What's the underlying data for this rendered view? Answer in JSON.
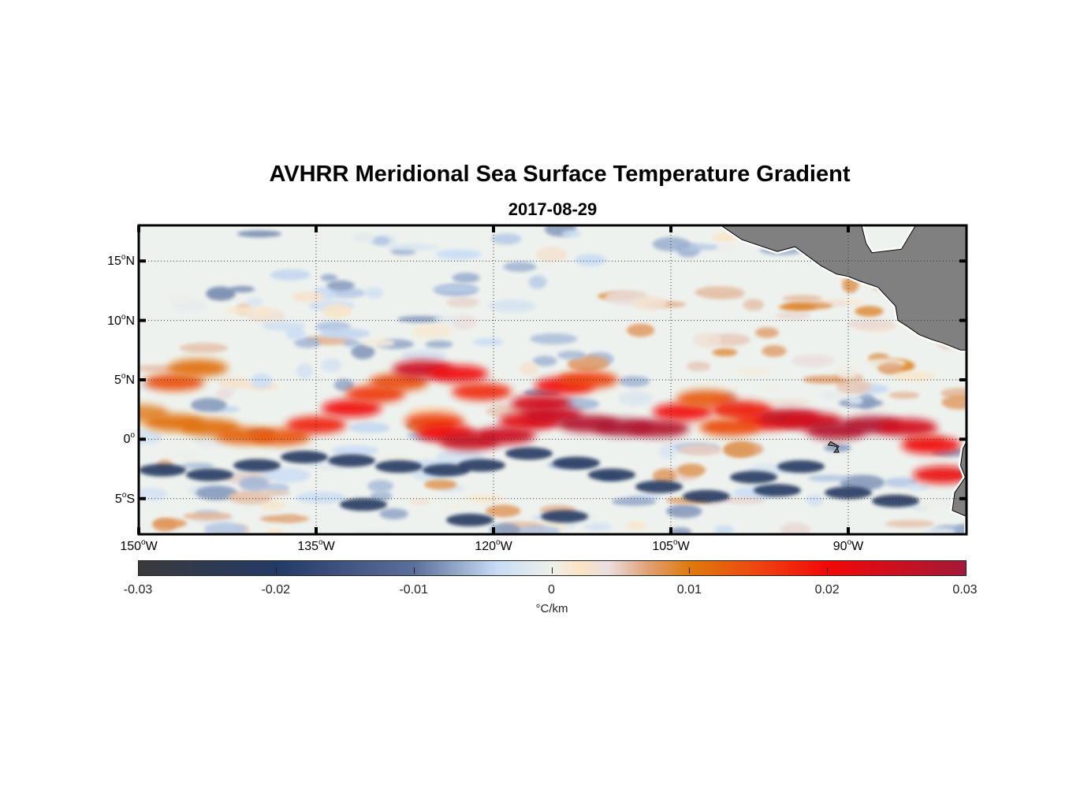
{
  "chart_data": {
    "type": "heatmap",
    "title": "AVHRR Meridional Sea Surface Temperature Gradient",
    "subtitle": "2017-08-29",
    "xlim": [
      -150,
      -80
    ],
    "ylim": [
      -8,
      18
    ],
    "x_ticks": [
      {
        "value": -150,
        "num": "150",
        "sup": "o",
        "hemi": "W"
      },
      {
        "value": -135,
        "num": "135",
        "sup": "o",
        "hemi": "W"
      },
      {
        "value": -120,
        "num": "120",
        "sup": "o",
        "hemi": "W"
      },
      {
        "value": -105,
        "num": "105",
        "sup": "o",
        "hemi": "W"
      },
      {
        "value": -90,
        "num": "90",
        "sup": "o",
        "hemi": "W"
      }
    ],
    "y_ticks": [
      {
        "value": 15,
        "num": "15",
        "sup": "o",
        "hemi": "N"
      },
      {
        "value": 10,
        "num": "10",
        "sup": "o",
        "hemi": "N"
      },
      {
        "value": 5,
        "num": "5",
        "sup": "o",
        "hemi": "N"
      },
      {
        "value": 0,
        "num": "0",
        "sup": "o",
        "hemi": ""
      },
      {
        "value": -5,
        "num": "5",
        "sup": "o",
        "hemi": "S"
      }
    ],
    "grid": true,
    "colorbar": {
      "range": [
        -0.03,
        0.03
      ],
      "ticks": [
        "-0.03",
        "-0.02",
        "-0.01",
        "0",
        "0.01",
        "0.02",
        "0.03"
      ],
      "tick_values": [
        -0.03,
        -0.02,
        -0.01,
        0,
        0.01,
        0.02,
        0.03
      ],
      "label": "°C/km",
      "placement": "bottom",
      "stops": [
        {
          "v": -0.03,
          "c": "#3a3a3c"
        },
        {
          "v": -0.02,
          "c": "#243a66"
        },
        {
          "v": -0.01,
          "c": "#5b6f9a"
        },
        {
          "v": -0.004,
          "c": "#c8dcf5"
        },
        {
          "v": 0,
          "c": "#eef0ea"
        },
        {
          "v": 0.002,
          "c": "#fbe4c4"
        },
        {
          "v": 0.004,
          "c": "#eadfe0"
        },
        {
          "v": 0.007,
          "c": "#e0a070"
        },
        {
          "v": 0.01,
          "c": "#de7a0c"
        },
        {
          "v": 0.015,
          "c": "#ee4410"
        },
        {
          "v": 0.02,
          "c": "#f20808"
        },
        {
          "v": 0.03,
          "c": "#a31938"
        }
      ]
    },
    "features": [
      {
        "name": "equatorial-front-band",
        "lon": [
          -150,
          -80
        ],
        "lat_center": 1.5,
        "value": 0.02
      },
      {
        "name": "south-equatorial-negative-band",
        "lon": [
          -150,
          -80
        ],
        "lat_center": -2.5,
        "value": -0.02
      }
    ],
    "land_color": "#808080",
    "land": "Central America and South American coast"
  }
}
